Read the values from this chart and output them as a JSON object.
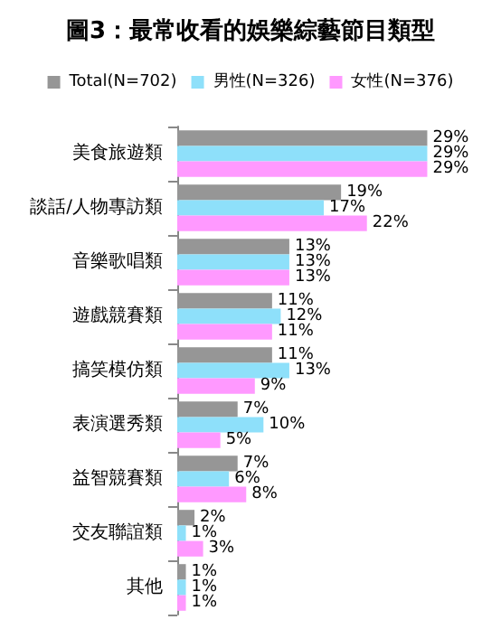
{
  "chart_data": {
    "type": "bar",
    "orientation": "horizontal",
    "title": "圖3：最常收看的娛樂綜藝節目類型",
    "categories": [
      "美食旅遊類",
      "談話/人物專訪類",
      "音樂歌唱類",
      "遊戲競賽類",
      "搞笑模仿類",
      "表演選秀類",
      "益智競賽類",
      "交友聯誼類",
      "其他"
    ],
    "series": [
      {
        "name": "Total(N=702)",
        "color": "#969696",
        "values": [
          29,
          19,
          13,
          11,
          11,
          7,
          7,
          2,
          1
        ],
        "value_labels": [
          "29%",
          "19%",
          "13%",
          "11%",
          "11%",
          "7%",
          "7%",
          "2%",
          "1%"
        ]
      },
      {
        "name": "男性(N=326)",
        "color": "#8ee0fa",
        "values": [
          29,
          17,
          13,
          12,
          13,
          10,
          6,
          1,
          1
        ],
        "value_labels": [
          "29%",
          "17%",
          "13%",
          "12%",
          "13%",
          "10%",
          "6%",
          "1%",
          "1%"
        ]
      },
      {
        "name": "女性(N=376)",
        "color": "#ff99ff",
        "values": [
          29,
          22,
          13,
          11,
          9,
          5,
          8,
          3,
          1
        ],
        "value_labels": [
          "29%",
          "22%",
          "13%",
          "11%",
          "9%",
          "5%",
          "8%",
          "3%",
          "1%"
        ]
      }
    ],
    "legend": "top"
  }
}
